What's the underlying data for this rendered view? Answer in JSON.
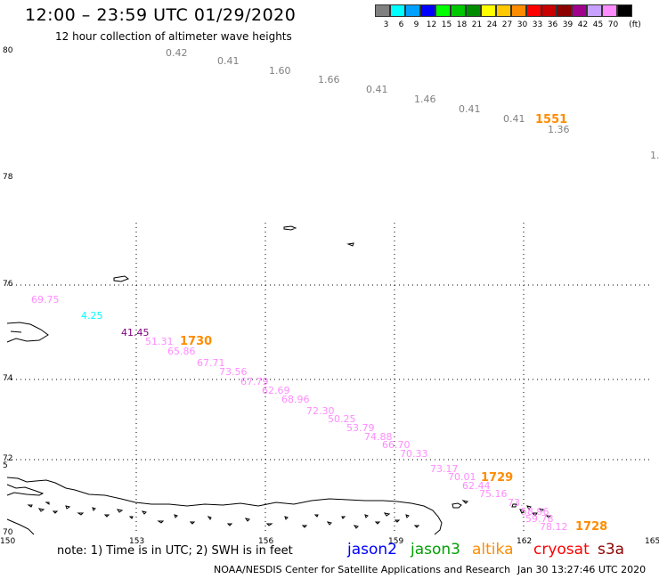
{
  "title": "12:00 – 23:59 UTC 01/29/2020",
  "subtitle": "12 hour collection of altimeter wave heights",
  "colorbar": {
    "unit": "(ft)",
    "bins": [
      {
        "label": "3",
        "color": "#808080"
      },
      {
        "label": "6",
        "color": "#00ffff"
      },
      {
        "label": "9",
        "color": "#00a0ff"
      },
      {
        "label": "12",
        "color": "#0000ff"
      },
      {
        "label": "15",
        "color": "#00ff00"
      },
      {
        "label": "18",
        "color": "#00c800"
      },
      {
        "label": "21",
        "color": "#008c00"
      },
      {
        "label": "24",
        "color": "#ffff00"
      },
      {
        "label": "27",
        "color": "#ffc800"
      },
      {
        "label": "30",
        "color": "#ff8c00"
      },
      {
        "label": "33",
        "color": "#ff0000"
      },
      {
        "label": "36",
        "color": "#c80000"
      },
      {
        "label": "39",
        "color": "#8c0000"
      },
      {
        "label": "42",
        "color": "#a0008c"
      },
      {
        "label": "45",
        "color": "#c8a0ff"
      },
      {
        "label": "70",
        "color": "#ff8cff"
      },
      {
        "label": "",
        "color": "#000000"
      }
    ]
  },
  "axes": {
    "lon_ticks": [
      "150",
      "153",
      "156",
      "159",
      "162",
      "165"
    ],
    "lat_ticks": [
      "80",
      "78",
      "76",
      "74",
      "72",
      "70"
    ],
    "partial_lat_tick": "5"
  },
  "tracks": [
    {
      "color": "#808080",
      "points": [
        {
          "text": "0.42"
        },
        {
          "text": "0.41"
        },
        {
          "text": "1.60"
        },
        {
          "text": "1.66"
        },
        {
          "text": "0.41"
        },
        {
          "text": "1.46"
        },
        {
          "text": "0.41"
        },
        {
          "text": "0.41"
        },
        {
          "text": "1.36"
        },
        {
          "text": "1."
        }
      ]
    },
    {
      "color": "#ff8cff",
      "points": [
        {
          "text": "69.75"
        },
        {
          "text": "51.31"
        },
        {
          "text": "65.86"
        },
        {
          "text": "67.71"
        },
        {
          "text": "73.56"
        },
        {
          "text": "67.79"
        },
        {
          "text": "62.69"
        },
        {
          "text": "68.96"
        },
        {
          "text": "72.30"
        },
        {
          "text": "50.25"
        },
        {
          "text": "53.79"
        },
        {
          "text": "74.88"
        },
        {
          "text": "66.70"
        },
        {
          "text": "70.33"
        },
        {
          "text": "73.17"
        },
        {
          "text": "70.01"
        },
        {
          "text": "62.44"
        },
        {
          "text": "75.16"
        },
        {
          "text": "73."
        },
        {
          "text": "58.96"
        },
        {
          "text": "59.78"
        },
        {
          "text": "78.12"
        }
      ]
    },
    {
      "color": "#00ffff",
      "points": [
        {
          "text": "4.25"
        }
      ]
    },
    {
      "color": "#800080",
      "points": [
        {
          "text": "41.45"
        }
      ]
    }
  ],
  "time_labels": [
    {
      "text": "1551",
      "color": "#ff8c00"
    },
    {
      "text": "1730",
      "color": "#ff8c00"
    },
    {
      "text": "1729",
      "color": "#ff8c00"
    },
    {
      "text": "1728",
      "color": "#ff8c00"
    }
  ],
  "note": "note: 1) Time is in UTC; 2) SWH is in feet",
  "legend": [
    {
      "text": "jason2",
      "color": "#0000ff"
    },
    {
      "text": "jason3",
      "color": "#00a000"
    },
    {
      "text": "altika",
      "color": "#ff8c00"
    },
    {
      "text": "cryosat",
      "color": "#ff0000"
    },
    {
      "text": "s3a",
      "color": "#8c0000"
    }
  ],
  "footer": {
    "credit": "NOAA/NESDIS Center for Satellite Applications and Research",
    "timestamp": "Jan 30 13:27:46 UTC 2020"
  }
}
